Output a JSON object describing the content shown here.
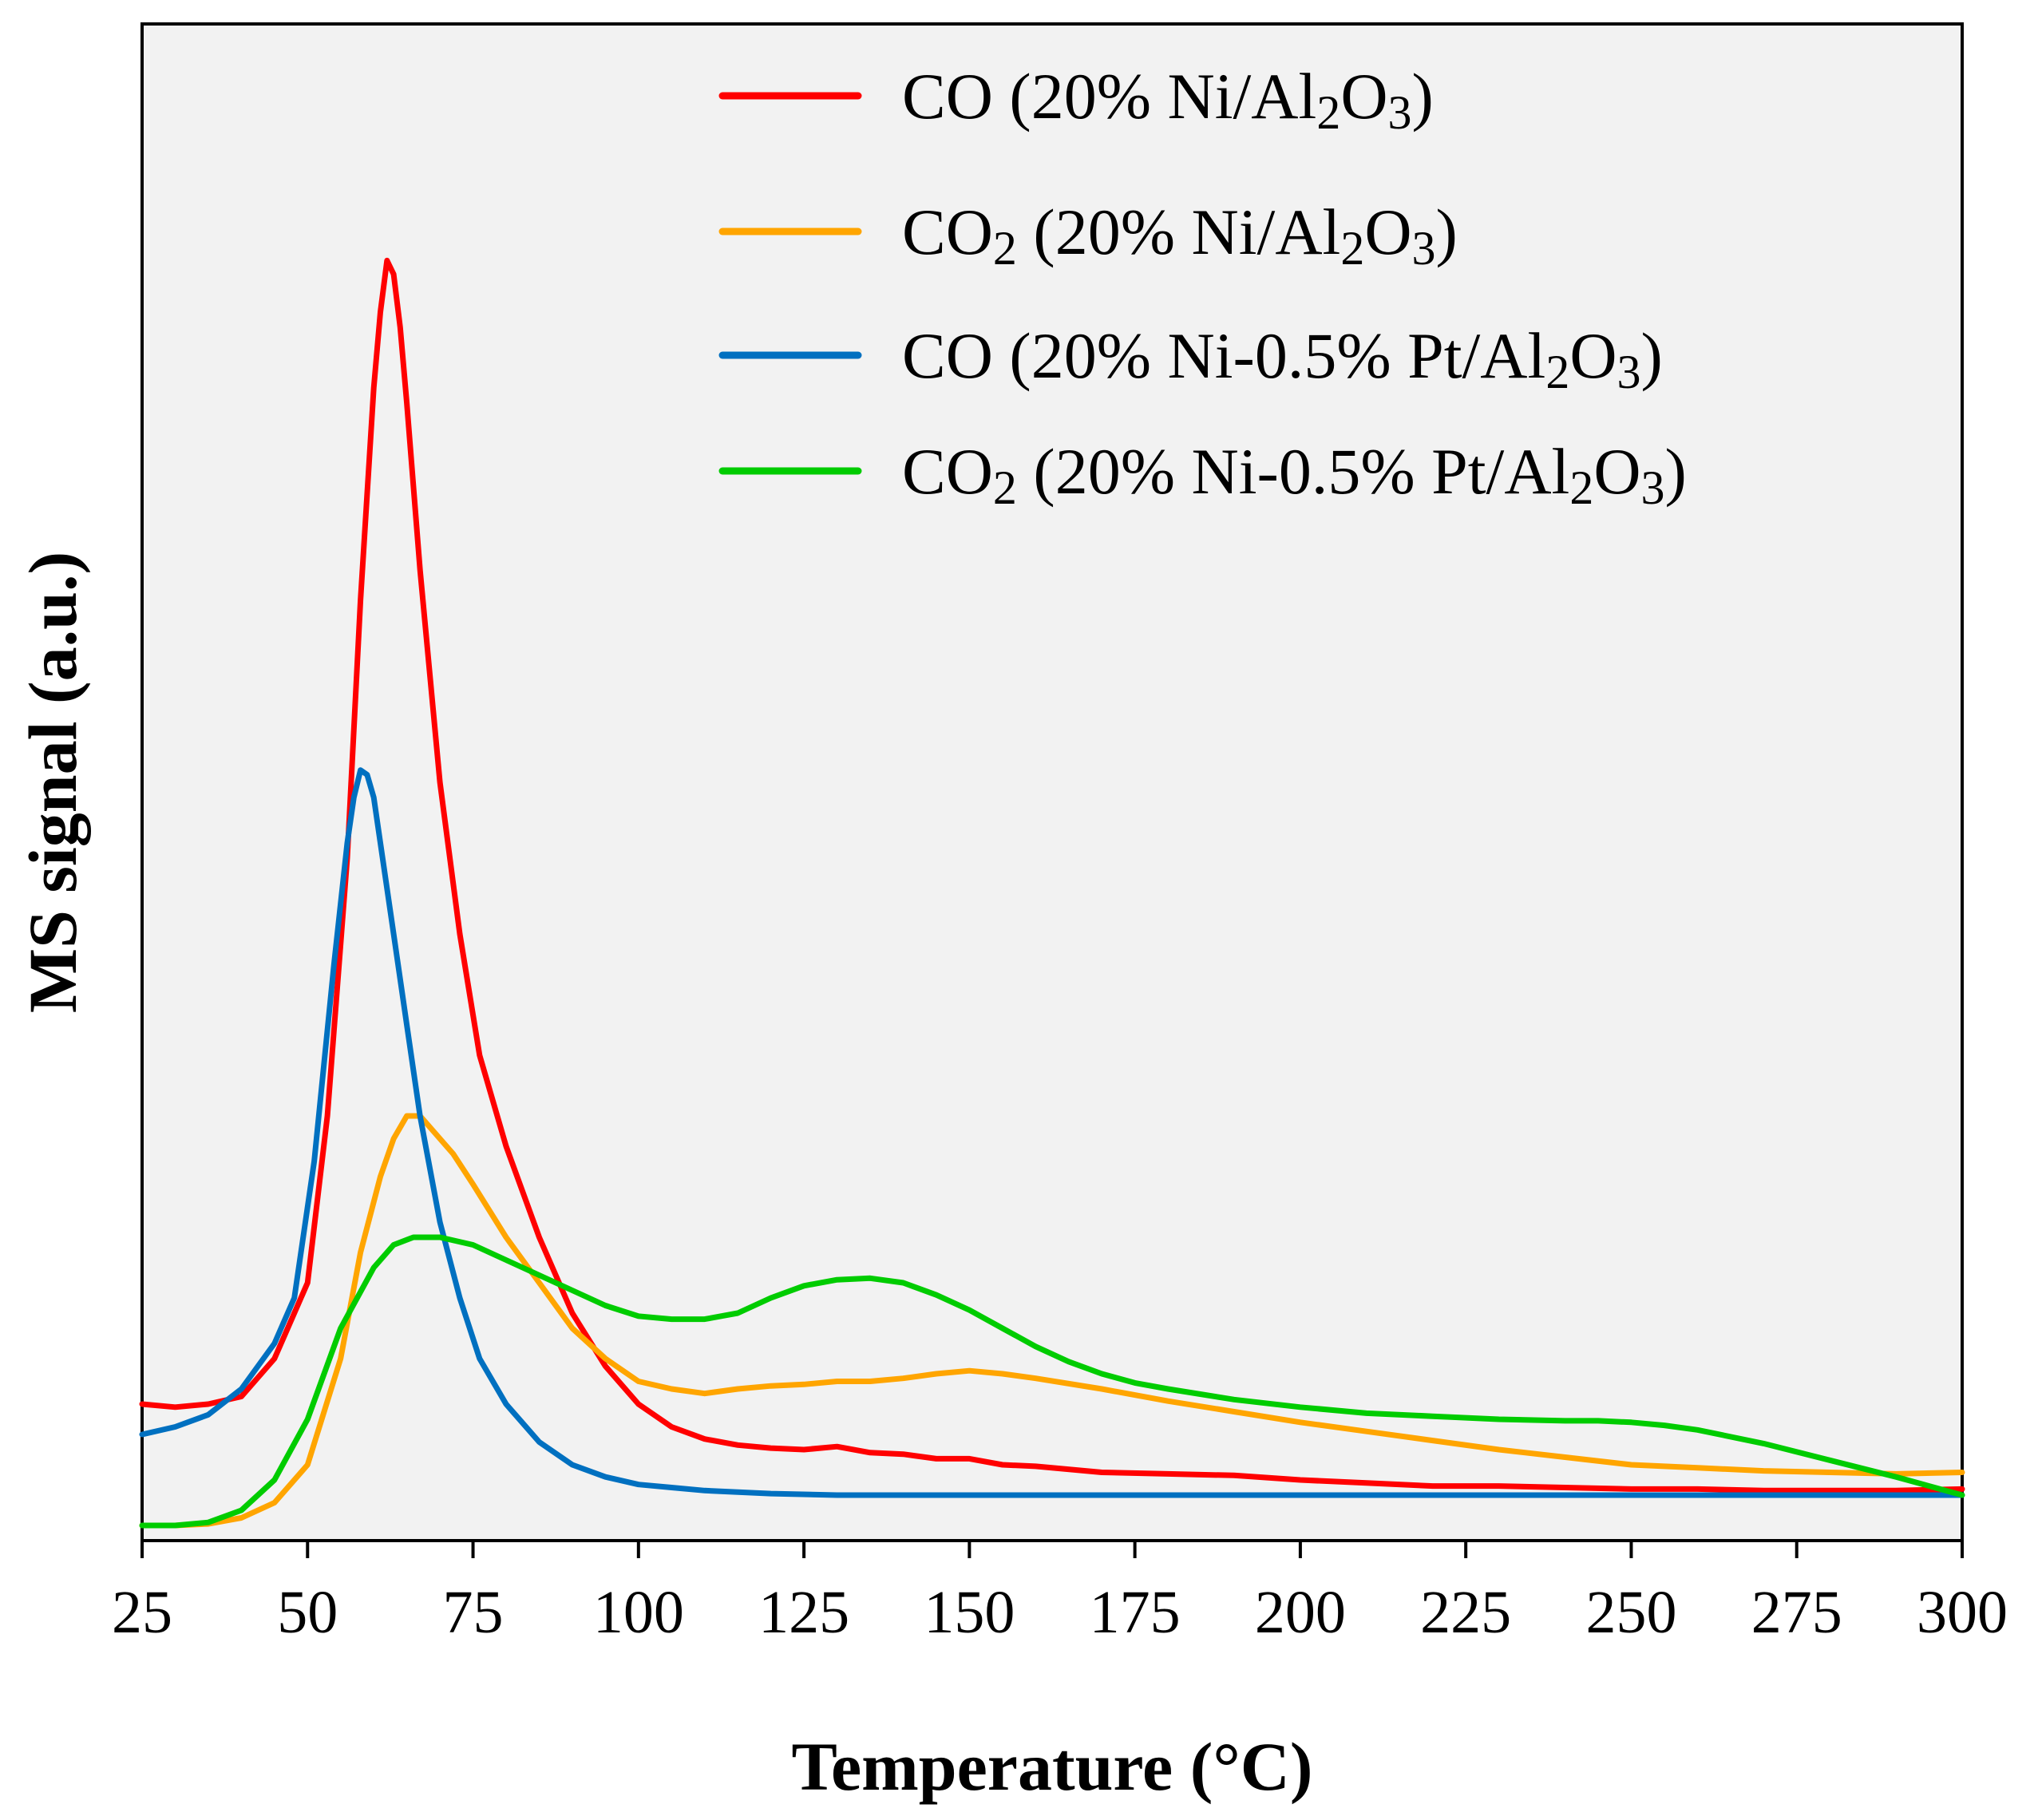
{
  "chart_data": {
    "type": "line",
    "title": "",
    "xlabel": "Temperature (°C)",
    "ylabel": "MS signal (a.u.)",
    "xlim": [
      25,
      300
    ],
    "ylim": [
      0,
      1.0
    ],
    "xticks": [
      25,
      50,
      75,
      100,
      125,
      150,
      175,
      200,
      225,
      250,
      275,
      300
    ],
    "xtick_labels": [
      "25",
      "50",
      "75",
      "100",
      "125",
      "150",
      "175",
      "200",
      "225",
      "250",
      "275",
      "300"
    ],
    "yticks_visible": false,
    "background": "#f2f2f2",
    "grid": false,
    "legend_position": "top-right",
    "series": [
      {
        "name": "CO (20% Ni/Al2O3)",
        "label_parts": [
          [
            "CO (20% Ni/Al",
            "n"
          ],
          [
            "2",
            "s"
          ],
          [
            "O",
            "n"
          ],
          [
            "3",
            "s"
          ],
          [
            ")",
            "n"
          ]
        ],
        "color": "#ff0000",
        "x": [
          25,
          30,
          35,
          40,
          45,
          50,
          53,
          56,
          58,
          60,
          61,
          62,
          63,
          64,
          65,
          67,
          70,
          73,
          76,
          80,
          85,
          90,
          95,
          100,
          105,
          110,
          115,
          120,
          125,
          130,
          135,
          140,
          145,
          150,
          155,
          160,
          170,
          180,
          190,
          200,
          210,
          220,
          230,
          240,
          250,
          260,
          270,
          280,
          290,
          300
        ],
        "y": [
          0.09,
          0.088,
          0.09,
          0.095,
          0.12,
          0.17,
          0.28,
          0.45,
          0.62,
          0.76,
          0.81,
          0.844,
          0.835,
          0.8,
          0.75,
          0.64,
          0.5,
          0.4,
          0.32,
          0.26,
          0.2,
          0.15,
          0.115,
          0.09,
          0.075,
          0.067,
          0.063,
          0.061,
          0.06,
          0.062,
          0.058,
          0.057,
          0.054,
          0.054,
          0.05,
          0.049,
          0.045,
          0.044,
          0.043,
          0.04,
          0.038,
          0.036,
          0.036,
          0.035,
          0.034,
          0.034,
          0.033,
          0.033,
          0.033,
          0.034
        ]
      },
      {
        "name": "CO2 (20% Ni/Al2O3)",
        "label_parts": [
          [
            "CO",
            "n"
          ],
          [
            "2",
            "s"
          ],
          [
            " (20% Ni/Al",
            "n"
          ],
          [
            "2",
            "s"
          ],
          [
            "O",
            "n"
          ],
          [
            "3",
            "s"
          ],
          [
            ")",
            "n"
          ]
        ],
        "color": "#ffa500",
        "x": [
          25,
          30,
          35,
          40,
          45,
          50,
          55,
          58,
          61,
          63,
          65,
          67,
          69,
          72,
          75,
          80,
          85,
          90,
          95,
          100,
          105,
          110,
          115,
          120,
          125,
          130,
          135,
          140,
          145,
          150,
          155,
          160,
          170,
          180,
          190,
          200,
          210,
          220,
          230,
          240,
          250,
          260,
          270,
          280,
          290,
          300
        ],
        "y": [
          0.01,
          0.01,
          0.011,
          0.015,
          0.025,
          0.05,
          0.12,
          0.19,
          0.24,
          0.265,
          0.28,
          0.28,
          0.27,
          0.255,
          0.235,
          0.2,
          0.17,
          0.14,
          0.12,
          0.105,
          0.1,
          0.097,
          0.1,
          0.102,
          0.103,
          0.105,
          0.105,
          0.107,
          0.11,
          0.112,
          0.11,
          0.107,
          0.1,
          0.092,
          0.085,
          0.078,
          0.072,
          0.066,
          0.06,
          0.055,
          0.05,
          0.048,
          0.046,
          0.045,
          0.044,
          0.045
        ]
      },
      {
        "name": "CO (20% Ni-0.5% Pt/Al2O3)",
        "label_parts": [
          [
            "CO (20% Ni-0.5% Pt/Al",
            "n"
          ],
          [
            "2",
            "s"
          ],
          [
            "O",
            "n"
          ],
          [
            "3",
            "s"
          ],
          [
            ")",
            "n"
          ]
        ],
        "color": "#0070c0",
        "x": [
          25,
          30,
          35,
          40,
          45,
          48,
          51,
          54,
          56,
          57,
          58,
          59,
          60,
          61,
          63,
          65,
          67,
          70,
          73,
          76,
          80,
          85,
          90,
          95,
          100,
          105,
          110,
          120,
          130,
          140,
          150,
          160,
          170,
          180,
          190,
          200,
          220,
          240,
          260,
          280,
          300
        ],
        "y": [
          0.07,
          0.075,
          0.083,
          0.1,
          0.13,
          0.16,
          0.25,
          0.38,
          0.46,
          0.49,
          0.508,
          0.505,
          0.49,
          0.46,
          0.4,
          0.34,
          0.28,
          0.21,
          0.16,
          0.12,
          0.09,
          0.065,
          0.05,
          0.042,
          0.037,
          0.035,
          0.033,
          0.031,
          0.03,
          0.03,
          0.03,
          0.03,
          0.03,
          0.03,
          0.03,
          0.03,
          0.03,
          0.03,
          0.03,
          0.03,
          0.03
        ]
      },
      {
        "name": "CO2 (20% Ni-0.5% Pt/Al2O3)",
        "label_parts": [
          [
            "CO",
            "n"
          ],
          [
            "2",
            "s"
          ],
          [
            " (20% Ni-0.5% Pt/Al",
            "n"
          ],
          [
            "2",
            "s"
          ],
          [
            "O",
            "n"
          ],
          [
            "3",
            "s"
          ],
          [
            ")",
            "n"
          ]
        ],
        "color": "#00cc00",
        "x": [
          25,
          30,
          35,
          40,
          45,
          50,
          55,
          60,
          63,
          66,
          70,
          75,
          80,
          85,
          90,
          95,
          100,
          105,
          110,
          115,
          120,
          125,
          130,
          135,
          140,
          145,
          150,
          155,
          160,
          165,
          170,
          175,
          180,
          190,
          200,
          210,
          220,
          230,
          240,
          245,
          250,
          255,
          260,
          270,
          280,
          290,
          300
        ],
        "y": [
          0.01,
          0.01,
          0.012,
          0.02,
          0.04,
          0.08,
          0.14,
          0.18,
          0.195,
          0.2,
          0.2,
          0.195,
          0.185,
          0.175,
          0.165,
          0.155,
          0.148,
          0.146,
          0.146,
          0.15,
          0.16,
          0.168,
          0.172,
          0.173,
          0.17,
          0.162,
          0.152,
          0.14,
          0.128,
          0.118,
          0.11,
          0.104,
          0.1,
          0.093,
          0.088,
          0.084,
          0.082,
          0.08,
          0.079,
          0.079,
          0.078,
          0.076,
          0.073,
          0.064,
          0.053,
          0.042,
          0.03
        ]
      }
    ]
  }
}
